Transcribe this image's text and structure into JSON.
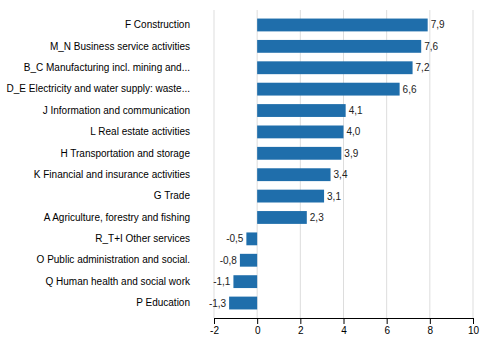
{
  "chart_data": {
    "type": "bar",
    "orientation": "horizontal",
    "categories": [
      "P Education",
      "Q  Human health and social work",
      "O Public administration and social.",
      "R_T+I Other services",
      "A Agriculture, forestry  and fishing",
      "G Trade",
      "K Financial and insurance activities",
      "H Transportation and storage",
      "L Real estate activities",
      "J Information and communication",
      "D_E Electricity and water supply: waste...",
      "B_C Manufacturing incl. mining and...",
      "M_N Business service activities",
      "F Construction"
    ],
    "values": [
      -1.3,
      -1.1,
      -0.8,
      -0.5,
      2.3,
      3.1,
      3.4,
      3.9,
      4.0,
      4.1,
      6.6,
      7.2,
      7.6,
      7.9
    ],
    "value_labels": [
      "-1,3",
      "-1,1",
      "-0,8",
      "-0,5",
      "2,3",
      "3,1",
      "3,4",
      "3,9",
      "4,0",
      "4,1",
      "6,6",
      "7,2",
      "7,6",
      "7,9"
    ],
    "data_labels": true,
    "color": "#1f6eab",
    "xlim": [
      -2,
      10
    ],
    "xticks": [
      -2,
      0,
      2,
      4,
      6,
      8,
      10
    ],
    "grid": true
  }
}
